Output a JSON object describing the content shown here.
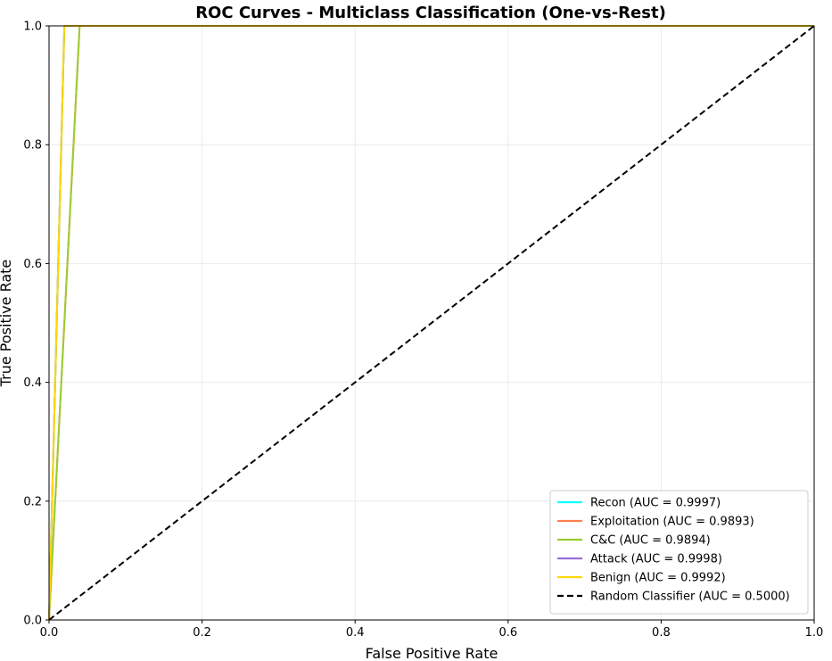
{
  "chart_data": {
    "type": "line",
    "title": "ROC Curves - Multiclass Classification (One-vs-Rest)",
    "xlabel": "False Positive Rate",
    "ylabel": "True Positive Rate",
    "xlim": [
      0,
      1
    ],
    "ylim": [
      0,
      1
    ],
    "xticks": [
      "0.0",
      "0.2",
      "0.4",
      "0.6",
      "0.8",
      "1.0"
    ],
    "yticks": [
      "0.0",
      "0.2",
      "0.4",
      "0.6",
      "0.8",
      "1.0"
    ],
    "grid": true,
    "legend_position": "bottom-right",
    "series": [
      {
        "name": "Recon (AUC = 0.9997)",
        "color": "#00FFFF",
        "dashed": false,
        "x": [
          0.0,
          0.0,
          0.02,
          1.0
        ],
        "y": [
          0.0,
          0.0,
          1.0,
          1.0
        ]
      },
      {
        "name": "Exploitation (AUC = 0.9893)",
        "color": "#FF7F50",
        "dashed": false,
        "x": [
          0.0,
          0.0,
          0.04,
          1.0
        ],
        "y": [
          0.0,
          0.0,
          1.0,
          1.0
        ]
      },
      {
        "name": "C&C (AUC = 0.9894)",
        "color": "#9ACD32",
        "dashed": false,
        "x": [
          0.0,
          0.0,
          0.04,
          1.0
        ],
        "y": [
          0.0,
          0.0,
          1.0,
          1.0
        ]
      },
      {
        "name": "Attack (AUC = 0.9998)",
        "color": "#9370DB",
        "dashed": false,
        "x": [
          0.0,
          0.0,
          0.02,
          1.0
        ],
        "y": [
          0.0,
          0.0,
          1.0,
          1.0
        ]
      },
      {
        "name": "Benign (AUC = 0.9992)",
        "color": "#FFD700",
        "dashed": false,
        "x": [
          0.0,
          0.0,
          0.02,
          1.0
        ],
        "y": [
          0.0,
          0.0,
          1.0,
          1.0
        ]
      },
      {
        "name": "Random Classifier (AUC = 0.5000)",
        "color": "#000000",
        "dashed": true,
        "x": [
          0.0,
          1.0
        ],
        "y": [
          0.0,
          1.0
        ]
      }
    ]
  }
}
